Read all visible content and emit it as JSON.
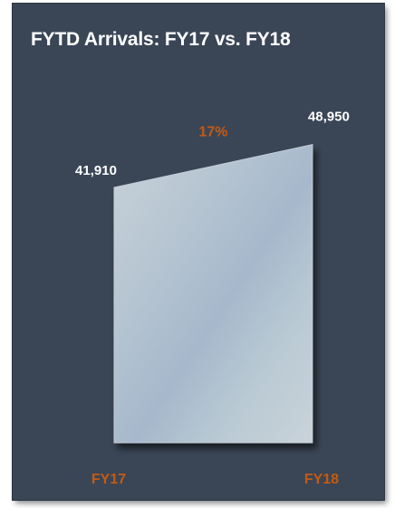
{
  "chart_data": {
    "type": "area",
    "title": "FYTD Arrivals: FY17 vs. FY18",
    "categories": [
      "FY17",
      "FY18"
    ],
    "values": [
      41910,
      48950
    ],
    "value_labels": [
      "41,910",
      "48,950"
    ],
    "change_label": "17%",
    "ylim": [
      0,
      52000
    ],
    "grid": false,
    "legend": "none",
    "colors": {
      "background": "#3a4656",
      "text": "#ffffff",
      "accent": "#c55a11",
      "fill": "#bccad6"
    }
  }
}
